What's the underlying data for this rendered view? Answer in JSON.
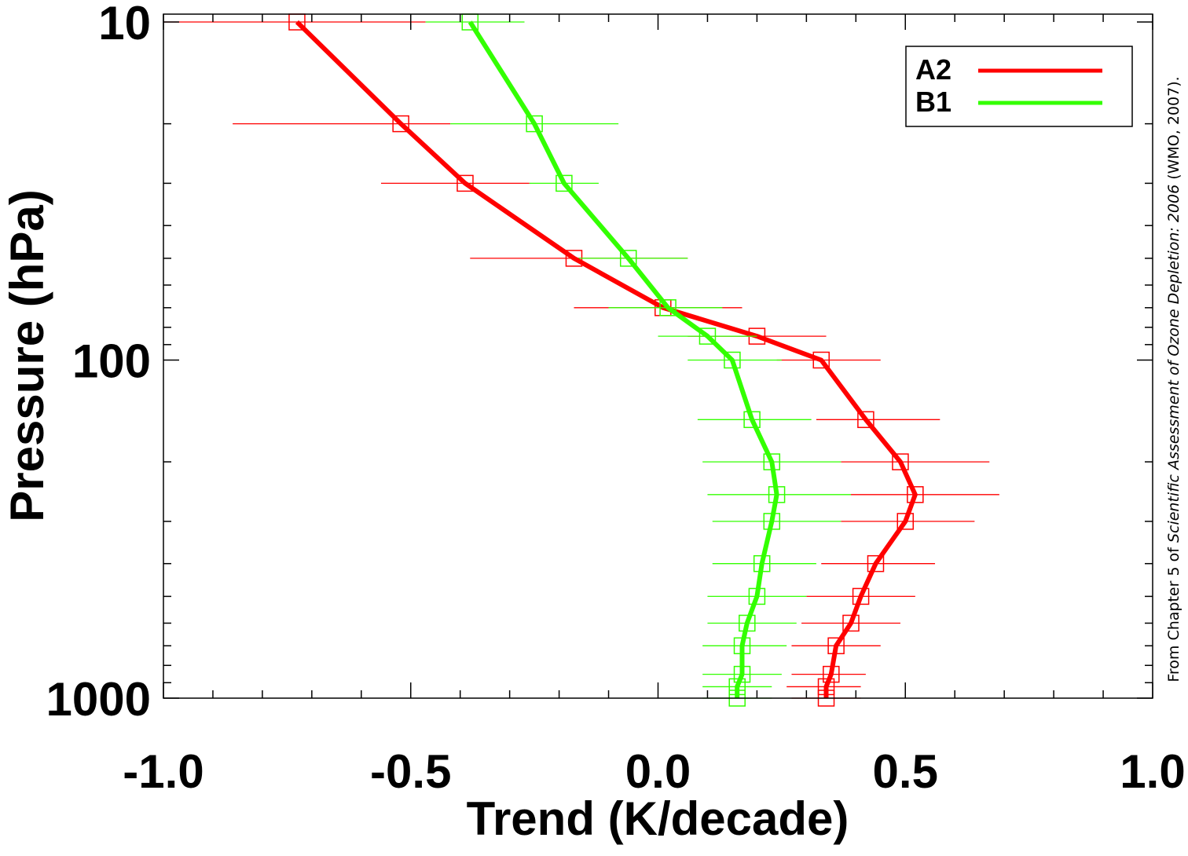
{
  "chart_data": {
    "type": "line",
    "title": "",
    "xlabel": "Trend (K/decade)",
    "ylabel": "Pressure (hPa)",
    "xlim": [
      -1.0,
      1.0
    ],
    "ylim": [
      1000,
      10
    ],
    "yscale": "log",
    "y_reversed": true,
    "x_ticks": [
      "-1.0",
      "-0.5",
      "0.0",
      "0.5",
      "1.0"
    ],
    "y_ticks": [
      "10",
      "100",
      "1000"
    ],
    "grid": false,
    "legend_position": "top-right",
    "pressure_levels": [
      10,
      20,
      30,
      50,
      70,
      85,
      100,
      150,
      200,
      250,
      300,
      400,
      500,
      600,
      700,
      850,
      925,
      1000
    ],
    "series": [
      {
        "name": "A2",
        "color": "#ff0000",
        "trend": [
          -0.73,
          -0.52,
          -0.39,
          -0.17,
          0.01,
          0.2,
          0.33,
          0.42,
          0.49,
          0.52,
          0.5,
          0.44,
          0.41,
          0.39,
          0.36,
          0.35,
          0.34,
          0.34
        ],
        "err_low": [
          -1.0,
          -0.86,
          -0.56,
          -0.38,
          -0.17,
          0.06,
          0.24,
          0.32,
          0.37,
          0.39,
          0.37,
          0.33,
          0.3,
          0.29,
          0.27,
          0.27,
          0.26,
          0.27
        ],
        "err_high": [
          -0.47,
          -0.42,
          -0.26,
          0.06,
          0.17,
          0.34,
          0.45,
          0.57,
          0.67,
          0.69,
          0.64,
          0.56,
          0.52,
          0.49,
          0.45,
          0.42,
          0.41,
          0.41
        ]
      },
      {
        "name": "B1",
        "color": "#33ff00",
        "trend": [
          -0.38,
          -0.25,
          -0.19,
          -0.06,
          0.02,
          0.1,
          0.15,
          0.19,
          0.23,
          0.24,
          0.23,
          0.21,
          0.2,
          0.18,
          0.17,
          0.17,
          0.16,
          0.16
        ],
        "err_low": [
          -0.47,
          -0.42,
          -0.26,
          -0.16,
          -0.1,
          0.0,
          0.06,
          0.08,
          0.09,
          0.1,
          0.11,
          0.11,
          0.1,
          0.1,
          0.09,
          0.09,
          0.09,
          0.09
        ],
        "err_high": [
          -0.27,
          -0.08,
          -0.12,
          0.06,
          0.13,
          0.2,
          0.25,
          0.31,
          0.37,
          0.39,
          0.37,
          0.32,
          0.3,
          0.28,
          0.26,
          0.25,
          0.23,
          0.23
        ]
      }
    ],
    "credit_parts": [
      "From Chapter 5 of ",
      "Scientific Assessment of Ozone Depletion: 2006",
      " (WMO, 2007)."
    ]
  }
}
